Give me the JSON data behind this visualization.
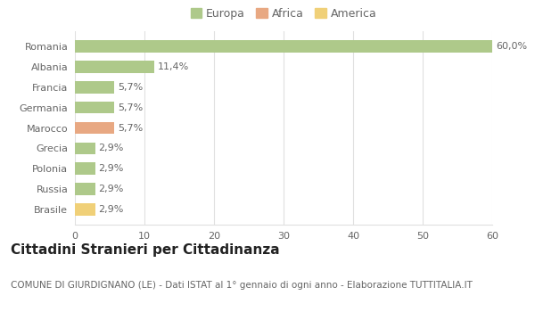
{
  "categories": [
    "Romania",
    "Albania",
    "Francia",
    "Germania",
    "Marocco",
    "Grecia",
    "Polonia",
    "Russia",
    "Brasile"
  ],
  "values": [
    60.0,
    11.4,
    5.7,
    5.7,
    5.7,
    2.9,
    2.9,
    2.9,
    2.9
  ],
  "labels": [
    "60,0%",
    "11,4%",
    "5,7%",
    "5,7%",
    "5,7%",
    "2,9%",
    "2,9%",
    "2,9%",
    "2,9%"
  ],
  "colors": [
    "#aec98a",
    "#aec98a",
    "#aec98a",
    "#aec98a",
    "#e8a882",
    "#aec98a",
    "#aec98a",
    "#aec98a",
    "#f0d078"
  ],
  "legend_labels": [
    "Europa",
    "Africa",
    "America"
  ],
  "legend_colors": [
    "#aec98a",
    "#e8a882",
    "#f0d078"
  ],
  "xlim": [
    0,
    60
  ],
  "xticks": [
    0,
    10,
    20,
    30,
    40,
    50,
    60
  ],
  "title": "Cittadini Stranieri per Cittadinanza",
  "subtitle": "COMUNE DI GIURDIGNANO (LE) - Dati ISTAT al 1° gennaio di ogni anno - Elaborazione TUTTITALIA.IT",
  "bg_color": "#ffffff",
  "grid_color": "#e0e0e0",
  "bar_height": 0.6,
  "title_fontsize": 11,
  "subtitle_fontsize": 7.5,
  "label_fontsize": 8,
  "tick_fontsize": 8,
  "legend_fontsize": 9
}
